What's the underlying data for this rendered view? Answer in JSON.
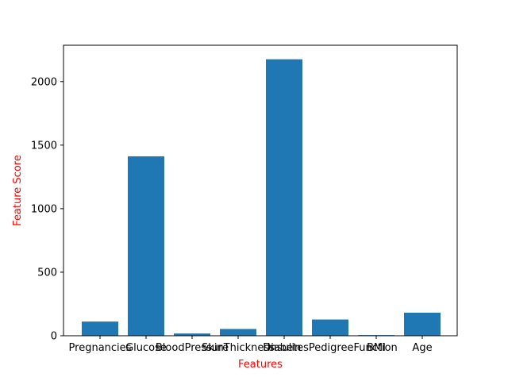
{
  "chart_data": {
    "type": "bar",
    "categories": [
      "Pregnancies",
      "Glucose",
      "BloodPressure",
      "SkinThickness",
      "Insulin",
      "DiabetesPedigreeFunction",
      "BMI",
      "Age"
    ],
    "category_display": [
      "Pregnancies",
      "Glucose",
      "BloodPressure",
      "SkinThickness",
      "Insulin",
      "DiabetesPedigreeFunction",
      "BMI",
      "Age"
    ],
    "values": [
      111.5,
      1411.9,
      17.6,
      53.1,
      2175.6,
      127.7,
      5.4,
      181.3
    ],
    "xlabel": "Features",
    "ylabel": "Feature Score",
    "ylim": [
      0,
      2286
    ],
    "yticks": [
      0,
      500,
      1000,
      1500,
      2000
    ],
    "grid": false,
    "bar_color": "#1f77b4",
    "label_color": "#ff0000"
  }
}
